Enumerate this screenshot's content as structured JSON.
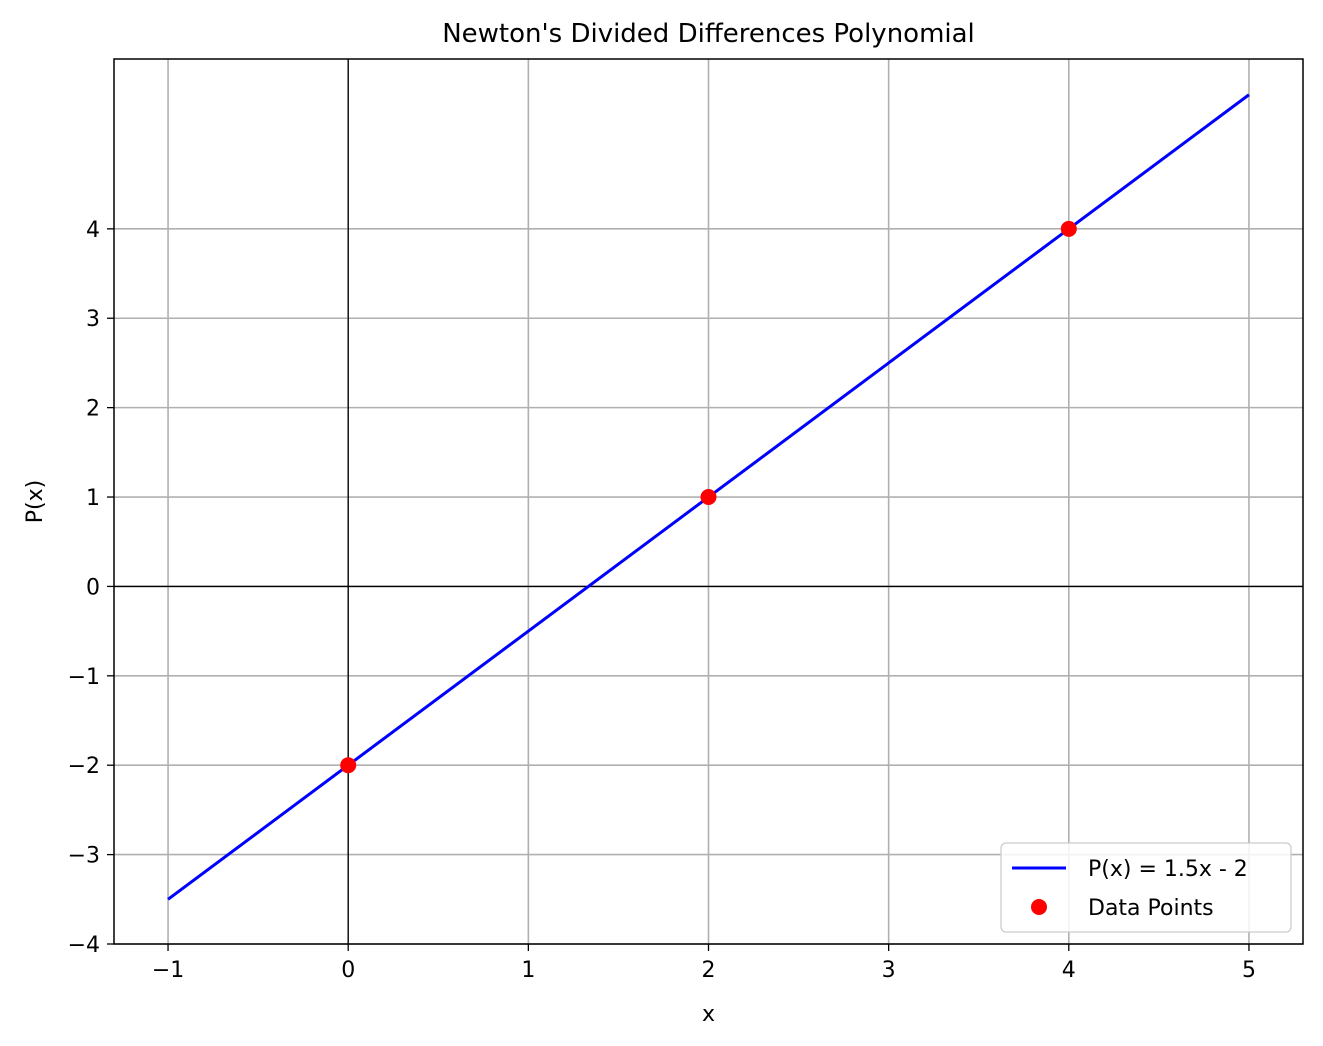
{
  "chart_data": {
    "type": "line",
    "title": "Newton's Divided Differences Polynomial",
    "xlabel": "x",
    "ylabel": "P(x)",
    "xlim": [
      -1.3,
      5.3
    ],
    "ylim": [
      -4,
      5.9
    ],
    "xticks": [
      -1,
      0,
      1,
      2,
      3,
      4,
      5
    ],
    "xtick_labels": [
      "−1",
      "0",
      "1",
      "2",
      "3",
      "4",
      "5"
    ],
    "yticks": [
      -4,
      -3,
      -2,
      -1,
      0,
      1,
      2,
      3,
      4
    ],
    "ytick_labels": [
      "−4",
      "−3",
      "−2",
      "−1",
      "0",
      "1",
      "2",
      "3",
      "4"
    ],
    "grid": true,
    "reference_lines": {
      "x": 0,
      "y": 0,
      "color": "#000000"
    },
    "legend_position": "lower-right",
    "series": [
      {
        "name": "P(x) = 1.5x - 2",
        "kind": "line",
        "color": "#0000ff",
        "x": [
          -1,
          5
        ],
        "y": [
          -3.5,
          5.5
        ]
      },
      {
        "name": "Data Points",
        "kind": "scatter",
        "color": "#ff0000",
        "x": [
          0,
          2,
          4
        ],
        "y": [
          -2,
          1,
          4
        ]
      }
    ]
  }
}
